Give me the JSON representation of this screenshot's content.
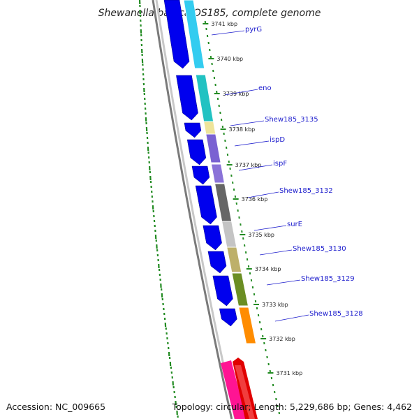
{
  "title": "Shewanella baltica OS185, complete genome",
  "footer": {
    "accession": "Accession: NC_009665",
    "summary": "Topology: circular; Length: 5,229,686 bp; Genes: 4,462"
  },
  "colors": {
    "forward_strand": "#0000ee",
    "reverse_strand": "#e00000",
    "backbone": "#888888",
    "gc_dots": "#228b22",
    "label": "#1a1acc"
  },
  "ticks": [
    "3741 kbp",
    "3740 kbp",
    "3739 kbp",
    "3738 kbp",
    "3737 kbp",
    "3736 kbp",
    "3735 kbp",
    "3734 kbp",
    "3733 kbp",
    "3732 kbp",
    "3731 kbp"
  ],
  "genes": [
    {
      "name": "pyrG",
      "color": "#33ccf0"
    },
    {
      "name": "eno",
      "color": "#22c2c2"
    },
    {
      "name": "Shew185_3135",
      "color": "#eee49a"
    },
    {
      "name": "ispD",
      "color": "#7a62d2"
    },
    {
      "name": "ispF",
      "color": "#8a72d8"
    },
    {
      "name": "Shew185_3132",
      "color": "#666666"
    },
    {
      "name": "surE",
      "color": "#c4c4c4"
    },
    {
      "name": "Shew185_3130",
      "color": "#bdb06a"
    },
    {
      "name": "Shew185_3129",
      "color": "#6b8e23"
    },
    {
      "name": "Shew185_3128",
      "color": "#ff8c00"
    }
  ]
}
